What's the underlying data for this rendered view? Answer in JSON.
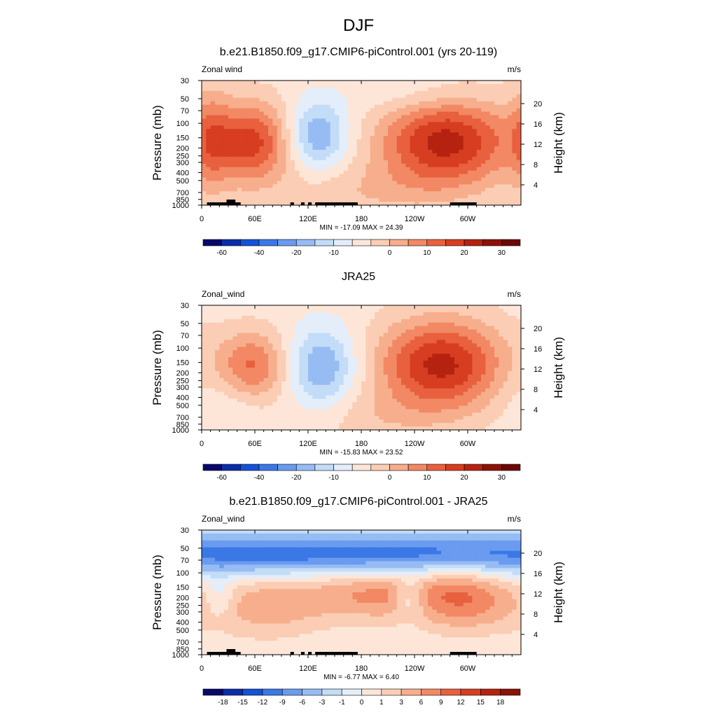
{
  "figure": {
    "title": "DJF"
  },
  "colors": {
    "land_mask": "#000000",
    "frame": "#000000",
    "background": "#ffffff"
  },
  "chart_data": [
    {
      "type": "heatmap",
      "title": "b.e21.B1850.f09_g17.CMIP6-piControl.001 (yrs 20-119)",
      "field_label": "Zonal wind",
      "units": "m/s",
      "ylabel": "Pressure (mb)",
      "y2label": "Height (km)",
      "xticks": [
        "0",
        "60E",
        "120E",
        "180",
        "120W",
        "60W"
      ],
      "yticks": [
        "30",
        "50",
        "70",
        "100",
        "150",
        "200",
        "250",
        "300",
        "400",
        "500",
        "700",
        "850",
        "1000"
      ],
      "y2ticks": [
        "20",
        "16",
        "12",
        "8",
        "4"
      ],
      "minmax_label": "MIN = -17.09  MAX =  24.39",
      "min": -17.09,
      "max": 24.39,
      "colorbar": {
        "labels": [
          "-60",
          "-40",
          "-20",
          "-10",
          "0",
          "10",
          "20",
          "30"
        ],
        "colors": [
          "#08086b",
          "#0a2ea8",
          "#1552d6",
          "#3a78e6",
          "#6a9bf0",
          "#97bcf4",
          "#c3dcf7",
          "#e3eefa",
          "#fde6d8",
          "#fbcdb4",
          "#f7ae8c",
          "#f28864",
          "#e8603e",
          "#d73d21",
          "#b52310",
          "#8c1208",
          "#6b0806"
        ]
      },
      "land_mask": true,
      "features": [
        {
          "lon": 275,
          "p": 170,
          "peak": 24,
          "wlon": 52,
          "wp": 0.9
        },
        {
          "lon": 55,
          "p": 170,
          "peak": 20,
          "wlon": 34,
          "wp": 0.8
        },
        {
          "lon": 130,
          "p": 140,
          "peak": -15,
          "wlon": 25,
          "wp": 0.7
        },
        {
          "lon": 180,
          "p": 700,
          "peak": 5,
          "wlon": 70,
          "wp": 0.6
        },
        {
          "lon": 10,
          "p": 150,
          "peak": 7,
          "wlon": 15,
          "wp": 1.2
        },
        {
          "lon": 250,
          "p": 45,
          "peak": -4,
          "wlon": 50,
          "wp": 0.4
        }
      ]
    },
    {
      "type": "heatmap",
      "title": "JRA25",
      "field_label": "Zonal_wind",
      "units": "m/s",
      "ylabel": "Pressure (mb)",
      "y2label": "Height (km)",
      "xticks": [
        "0",
        "60E",
        "120E",
        "180",
        "120W",
        "60W"
      ],
      "yticks": [
        "30",
        "50",
        "70",
        "100",
        "150",
        "200",
        "250",
        "300",
        "400",
        "500",
        "700",
        "850",
        "1000"
      ],
      "y2ticks": [
        "20",
        "16",
        "12",
        "8",
        "4"
      ],
      "minmax_label": "MIN = -15.83  MAX =  23.52",
      "min": -15.83,
      "max": 23.52,
      "colorbar": {
        "labels": [
          "-60",
          "-40",
          "-20",
          "-10",
          "0",
          "10",
          "20",
          "30"
        ],
        "colors": [
          "#08086b",
          "#0a2ea8",
          "#1552d6",
          "#3a78e6",
          "#6a9bf0",
          "#97bcf4",
          "#c3dcf7",
          "#e3eefa",
          "#fde6d8",
          "#fbcdb4",
          "#f7ae8c",
          "#f28864",
          "#e8603e",
          "#d73d21",
          "#b52310",
          "#8c1208",
          "#6b0806"
        ]
      },
      "land_mask": false,
      "features": [
        {
          "lon": 270,
          "p": 160,
          "peak": 23,
          "wlon": 50,
          "wp": 0.9
        },
        {
          "lon": 55,
          "p": 170,
          "peak": 17,
          "wlon": 30,
          "wp": 0.7
        },
        {
          "lon": 135,
          "p": 170,
          "peak": -14,
          "wlon": 28,
          "wp": 0.8
        },
        {
          "lon": 195,
          "p": 700,
          "peak": 4,
          "wlon": 60,
          "wp": 0.5
        },
        {
          "lon": 30,
          "p": 300,
          "peak": -5,
          "wlon": 35,
          "wp": 0.9
        }
      ]
    },
    {
      "type": "heatmap",
      "title": "b.e21.B1850.f09_g17.CMIP6-piControl.001 - JRA25",
      "field_label": "Zonal_wind",
      "units": "m/s",
      "ylabel": "Pressure (mb)",
      "y2label": "Height (km)",
      "xticks": [
        "0",
        "60E",
        "120E",
        "180",
        "120W",
        "60W"
      ],
      "yticks": [
        "30",
        "50",
        "70",
        "100",
        "150",
        "200",
        "250",
        "300",
        "400",
        "500",
        "700",
        "850",
        "1000"
      ],
      "y2ticks": [
        "20",
        "16",
        "12",
        "8",
        "4"
      ],
      "minmax_label": "MIN =  -6.77  MAX =   6.40",
      "min": -6.77,
      "max": 6.4,
      "colorbar": {
        "labels": [
          "-18",
          "-15",
          "-12",
          "-9",
          "-6",
          "-3",
          "-1",
          "0",
          "1",
          "3",
          "6",
          "9",
          "12",
          "15",
          "18"
        ],
        "colors": [
          "#08086b",
          "#0a2ea8",
          "#1552d6",
          "#3a78e6",
          "#6a9bf0",
          "#97bcf4",
          "#c3dcf7",
          "#e3eefa",
          "#fde6d8",
          "#fbcdb4",
          "#f7ae8c",
          "#f28864",
          "#e8603e",
          "#d73d21",
          "#b52310",
          "#8c1208"
        ]
      },
      "land_mask": true,
      "features": [
        {
          "lon": 180,
          "p": 60,
          "peak": -6,
          "wlon": 400,
          "wp": 0.45
        },
        {
          "lon": 200,
          "p": 170,
          "peak": 4,
          "wlon": 60,
          "wp": 0.6
        },
        {
          "lon": 70,
          "p": 250,
          "peak": 3,
          "wlon": 50,
          "wp": 0.7
        },
        {
          "lon": 300,
          "p": 200,
          "peak": 4,
          "wlon": 40,
          "wp": 0.7
        },
        {
          "lon": 235,
          "p": 200,
          "peak": -3,
          "wlon": 12,
          "wp": 0.4
        },
        {
          "lon": 20,
          "p": 200,
          "peak": -2,
          "wlon": 12,
          "wp": 0.4
        }
      ]
    }
  ]
}
